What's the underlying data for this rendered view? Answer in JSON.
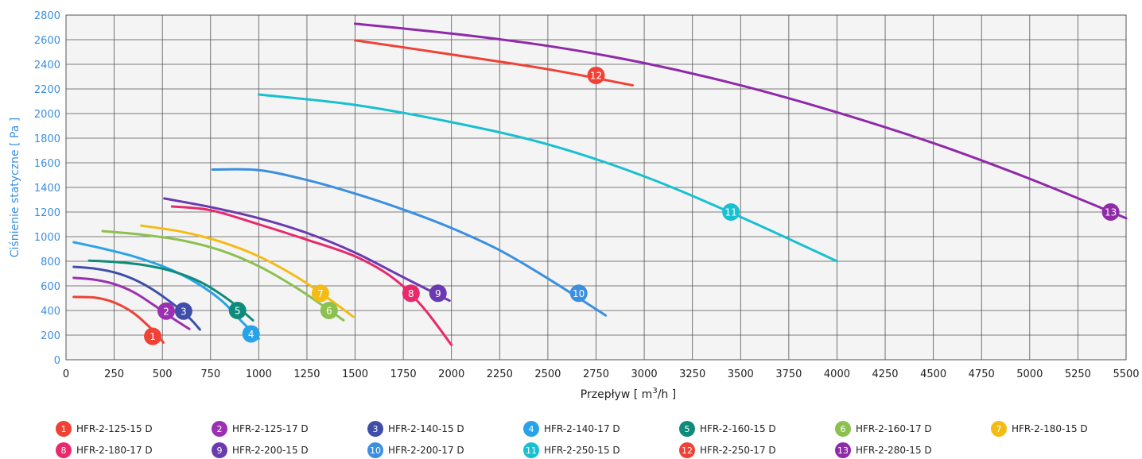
{
  "chart_data": {
    "type": "line",
    "xlabel_main": "Przepływ",
    "xlabel_unit_pre": "[ m",
    "xlabel_unit_sup": "3",
    "xlabel_unit_post": "/h ]",
    "ylabel": "Ciśnienie statyczne [ Pa ]",
    "xlim": [
      0,
      5500
    ],
    "ylim": [
      0,
      2800
    ],
    "xticks": [
      0,
      250,
      500,
      750,
      1000,
      1250,
      1500,
      1750,
      2000,
      2250,
      2500,
      2750,
      3000,
      3250,
      3500,
      3750,
      4000,
      4250,
      4500,
      4750,
      5000,
      5250,
      5500
    ],
    "yticks": [
      0,
      200,
      400,
      600,
      800,
      1000,
      1200,
      1400,
      1600,
      1800,
      2000,
      2200,
      2400,
      2600,
      2800
    ],
    "grid": true,
    "legend_position": "bottom",
    "series": [
      {
        "id": "1",
        "name": "HFR-2-125-15 D",
        "color": "#ef4136",
        "x": [
          40,
          150,
          250,
          350,
          450,
          505
        ],
        "y": [
          510,
          505,
          465,
          380,
          240,
          140
        ],
        "marker": [
          450,
          190
        ]
      },
      {
        "id": "2",
        "name": "HFR-2-125-17 D",
        "color": "#9b30b0",
        "x": [
          40,
          150,
          250,
          350,
          450,
          550,
          640
        ],
        "y": [
          665,
          650,
          615,
          550,
          450,
          340,
          250
        ],
        "marker": [
          520,
          395
        ]
      },
      {
        "id": "3",
        "name": "HFR-2-140-15 D",
        "color": "#3f4ea8",
        "x": [
          40,
          150,
          250,
          350,
          450,
          550,
          640,
          695
        ],
        "y": [
          755,
          740,
          710,
          655,
          570,
          460,
          340,
          245
        ],
        "marker": [
          610,
          395
        ]
      },
      {
        "id": "4",
        "name": "HFR-2-140-17 D",
        "color": "#29a3e8",
        "x": [
          40,
          200,
          350,
          500,
          650,
          800,
          900,
          1000
        ],
        "y": [
          955,
          900,
          840,
          760,
          650,
          490,
          330,
          170
        ],
        "marker": [
          960,
          210
        ]
      },
      {
        "id": "5",
        "name": "HFR-2-160-15 D",
        "color": "#0f8b7b",
        "x": [
          120,
          250,
          400,
          550,
          700,
          850,
          970
        ],
        "y": [
          805,
          795,
          770,
          720,
          630,
          480,
          320
        ],
        "marker": [
          890,
          400
        ]
      },
      {
        "id": "6",
        "name": "HFR-2-160-17 D",
        "color": "#8cc04f",
        "x": [
          190,
          400,
          600,
          800,
          1000,
          1200,
          1350,
          1440
        ],
        "y": [
          1045,
          1015,
          970,
          890,
          760,
          580,
          420,
          320
        ],
        "marker": [
          1365,
          400
        ]
      },
      {
        "id": "7",
        "name": "HFR-2-180-15 D",
        "color": "#f4bb14",
        "x": [
          390,
          600,
          800,
          1000,
          1200,
          1350,
          1490
        ],
        "y": [
          1090,
          1040,
          960,
          840,
          670,
          510,
          350
        ],
        "marker": [
          1320,
          540
        ]
      },
      {
        "id": "8",
        "name": "HFR-2-180-17 D",
        "color": "#e8296b",
        "x": [
          550,
          750,
          1000,
          1250,
          1500,
          1700,
          1850,
          2000
        ],
        "y": [
          1245,
          1215,
          1100,
          975,
          840,
          660,
          430,
          120
        ],
        "marker": [
          1790,
          540
        ]
      },
      {
        "id": "9",
        "name": "HFR-2-200-15 D",
        "color": "#6a3bb0",
        "x": [
          510,
          750,
          1000,
          1250,
          1500,
          1750,
          1990
        ],
        "y": [
          1310,
          1240,
          1150,
          1030,
          870,
          670,
          480
        ],
        "marker": [
          1930,
          540
        ]
      },
      {
        "id": "10",
        "name": "HFR-2-200-17 D",
        "color": "#3a8fe0",
        "x": [
          760,
          1000,
          1250,
          1500,
          1750,
          2000,
          2250,
          2500,
          2800
        ],
        "y": [
          1545,
          1540,
          1460,
          1350,
          1220,
          1070,
          890,
          660,
          360
        ],
        "marker": [
          2660,
          540
        ]
      },
      {
        "id": "11",
        "name": "HFR-2-250-15 D",
        "color": "#18c0d0",
        "x": [
          1000,
          1500,
          2000,
          2500,
          3000,
          3500,
          4000
        ],
        "y": [
          2155,
          2070,
          1930,
          1750,
          1490,
          1160,
          800
        ],
        "marker": [
          3450,
          1200
        ]
      },
      {
        "id": "12",
        "name": "HFR-2-250-17 D",
        "color": "#ef4136",
        "x": [
          1500,
          2000,
          2500,
          2940
        ],
        "y": [
          2595,
          2480,
          2360,
          2230
        ],
        "marker": [
          2750,
          2310
        ]
      },
      {
        "id": "13",
        "name": "HFR-2-280-15 D",
        "color": "#8f2aa8",
        "x": [
          1500,
          2000,
          2500,
          3000,
          3500,
          4000,
          4500,
          5000,
          5500
        ],
        "y": [
          2730,
          2650,
          2550,
          2410,
          2230,
          2010,
          1760,
          1470,
          1150
        ],
        "marker": [
          5420,
          1200
        ]
      }
    ]
  }
}
